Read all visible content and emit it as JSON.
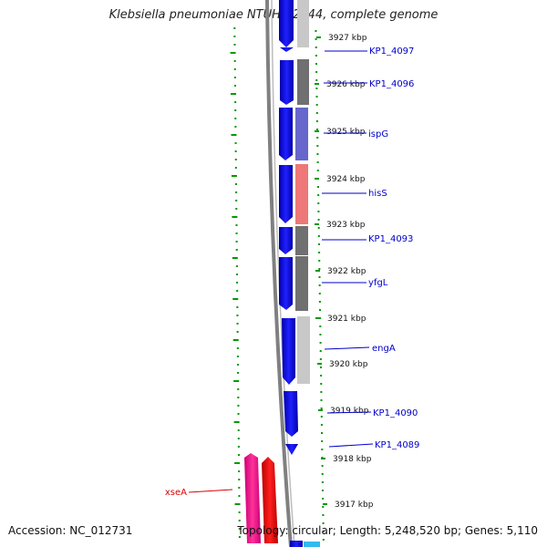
{
  "header": {
    "title": "Klebsiella pneumoniae NTUH-K2044, complete genome"
  },
  "footer": {
    "accession": "Accession: NC_012731",
    "summary": "Topology: circular; Length: 5,248,520 bp; Genes: 5,110"
  },
  "ticks": [
    "3927 kbp",
    "3926 kbp",
    "3925 kbp",
    "3924 kbp",
    "3923 kbp",
    "3922 kbp",
    "3921 kbp",
    "3920 kbp",
    "3919 kbp",
    "3918 kbp",
    "3917 kbp"
  ],
  "genes": [
    {
      "label": "KP1_4097",
      "color": "#0000cc"
    },
    {
      "label": "KP1_4096",
      "color": "#0000cc"
    },
    {
      "label": "ispG",
      "color": "#0000cc"
    },
    {
      "label": "hisS",
      "color": "#0000cc"
    },
    {
      "label": "KP1_4093",
      "color": "#0000cc"
    },
    {
      "label": "yfgL",
      "color": "#0000cc"
    },
    {
      "label": "engA",
      "color": "#0000cc"
    },
    {
      "label": "KP1_4090",
      "color": "#0000cc"
    },
    {
      "label": "KP1_4089",
      "color": "#0000cc"
    },
    {
      "label": "xseA",
      "color": "#dd0000"
    }
  ],
  "colors": {
    "forward_strand": "#0000ee",
    "reverse_strand": "#ff1493",
    "reverse_strand_alt": "#ee0000",
    "backbone": "#808080",
    "gc_skew_dots": "#009900",
    "label_blue": "#0000cc",
    "label_red": "#dd0000"
  }
}
